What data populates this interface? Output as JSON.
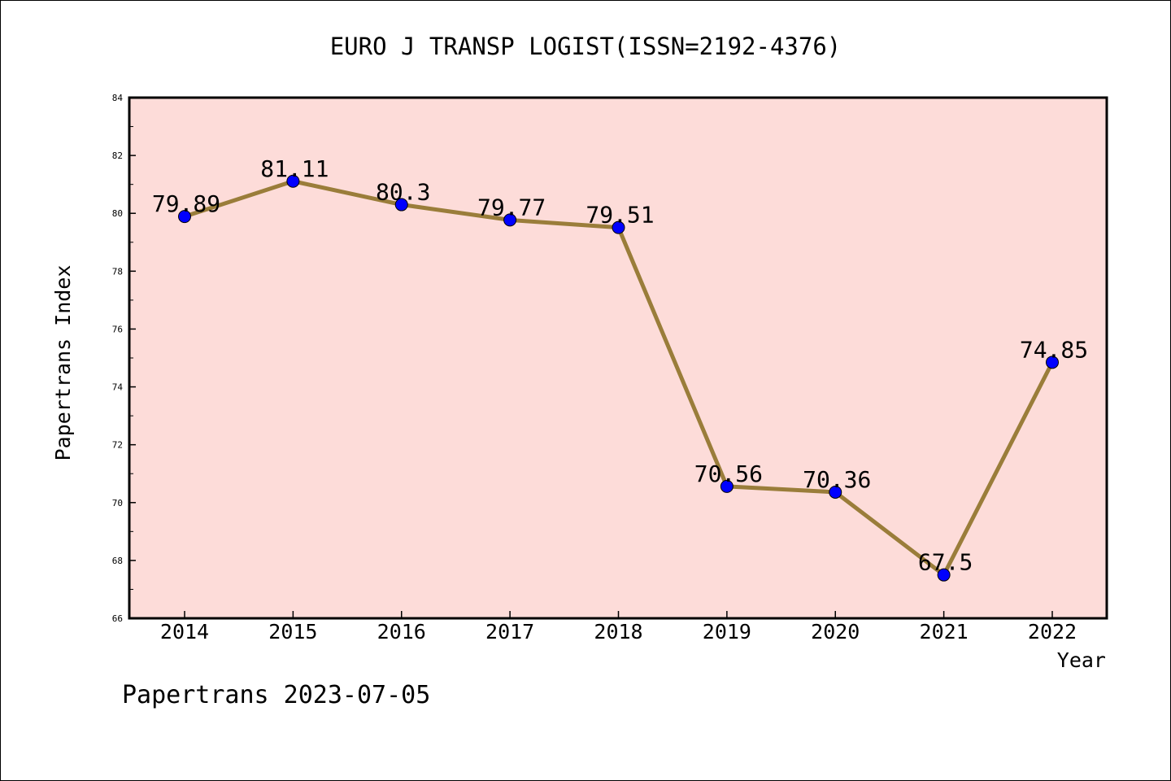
{
  "chart_data": {
    "type": "line",
    "title": "EURO J TRANSP LOGIST(ISSN=2192-4376)",
    "xlabel": "Year",
    "ylabel": "Papertrans Index",
    "categories": [
      "2014",
      "2015",
      "2016",
      "2017",
      "2018",
      "2019",
      "2020",
      "2021",
      "2022"
    ],
    "values": [
      79.89,
      81.11,
      80.3,
      79.77,
      79.51,
      70.56,
      70.36,
      67.5,
      74.85
    ],
    "data_labels": [
      "79.89",
      "81.11",
      "80.3",
      "79.77",
      "79.51",
      "70.56",
      "70.36",
      "67.5",
      "74.85"
    ],
    "ylim": [
      66,
      84
    ],
    "yticks": [
      "66",
      "68",
      "70",
      "72",
      "74",
      "76",
      "78",
      "80",
      "82",
      "84"
    ],
    "grid": false,
    "colors": {
      "plot_background": "#FDDCD9",
      "line": "#9A7D3A",
      "marker": "#0000FF"
    }
  },
  "footer": {
    "text": "Papertrans 2023-07-05"
  }
}
